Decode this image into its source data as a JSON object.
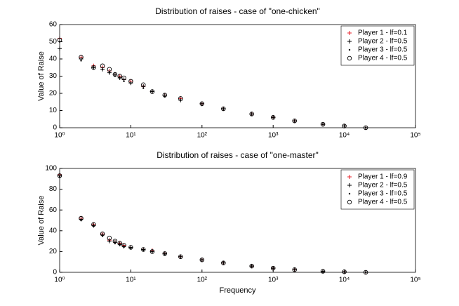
{
  "chart_data": [
    {
      "type": "scatter",
      "title": "Distribution of raises - case of \"one-chicken\"",
      "y_label": "Value of Raise",
      "x_scale": "log",
      "xlim": [
        1,
        100000
      ],
      "xticks": [
        {
          "value": 1,
          "label": "10⁰"
        },
        {
          "value": 10,
          "label": "10¹"
        },
        {
          "value": 100,
          "label": "10²"
        },
        {
          "value": 1000,
          "label": "10³"
        },
        {
          "value": 10000,
          "label": "10⁴"
        },
        {
          "value": 100000,
          "label": "10⁵"
        }
      ],
      "ylim": [
        0,
        60
      ],
      "yticks": [
        0,
        10,
        20,
        30,
        40,
        50,
        60
      ],
      "legend": "upper right",
      "x": [
        1,
        2,
        3,
        4,
        5,
        6,
        7,
        8,
        10,
        15,
        20,
        30,
        50,
        100,
        200,
        500,
        1000,
        2000,
        5000,
        10000,
        20000
      ],
      "series": [
        {
          "name": "Player 1 - lf=0.1",
          "color": "#e8202a",
          "marker": "+",
          "values": [
            52,
            41,
            36,
            35,
            33,
            31,
            30,
            28,
            27,
            24,
            21,
            19,
            17,
            14,
            11,
            8,
            6,
            4,
            2,
            1,
            0
          ]
        },
        {
          "name": "Player 2 - lf=0.5",
          "color": "#000000",
          "marker": "+",
          "values": [
            46,
            40,
            35,
            34,
            32,
            31,
            29,
            28,
            26,
            24,
            21,
            19,
            16,
            14,
            11,
            8,
            6,
            4,
            2,
            1,
            0
          ]
        },
        {
          "name": "Player 3 - lf=0.5",
          "color": "#000000",
          "marker": ".",
          "values": [
            50,
            39,
            35,
            34,
            32,
            30,
            29,
            27,
            26,
            23,
            21,
            18,
            16,
            13,
            11,
            8,
            6,
            4,
            2,
            1,
            0
          ]
        },
        {
          "name": "Player 4 - lf=0.5",
          "color": "#000000",
          "marker": "o",
          "values": [
            51,
            41,
            35,
            36,
            34,
            31,
            30,
            29,
            27,
            25,
            21,
            19,
            17,
            14,
            11,
            8,
            6,
            4,
            2,
            1,
            0
          ]
        }
      ]
    },
    {
      "type": "scatter",
      "title": "Distribution of raises - case of \"one-master\"",
      "y_label": "Value of Raise",
      "x_label": "Frequency",
      "x_scale": "log",
      "xlim": [
        1,
        100000
      ],
      "xticks": [
        {
          "value": 1,
          "label": "10⁰"
        },
        {
          "value": 10,
          "label": "10¹"
        },
        {
          "value": 100,
          "label": "10²"
        },
        {
          "value": 1000,
          "label": "10³"
        },
        {
          "value": 10000,
          "label": "10⁴"
        },
        {
          "value": 100000,
          "label": "10⁵"
        }
      ],
      "ylim": [
        0,
        100
      ],
      "yticks": [
        0,
        20,
        40,
        60,
        80,
        100
      ],
      "legend": "upper right",
      "x": [
        1,
        2,
        3,
        4,
        5,
        6,
        7,
        8,
        10,
        15,
        20,
        30,
        50,
        100,
        200,
        500,
        1000,
        2000,
        5000,
        10000,
        20000
      ],
      "series": [
        {
          "name": "Player 1 - lf=0.9",
          "color": "#e8202a",
          "marker": "+",
          "values": [
            94,
            52,
            46,
            37,
            31,
            29,
            28,
            26,
            24,
            22,
            21,
            18,
            15,
            12,
            9,
            6,
            4,
            2.5,
            1,
            0.5,
            0
          ]
        },
        {
          "name": "Player 2 - lf=0.5",
          "color": "#000000",
          "marker": "+",
          "values": [
            93,
            51,
            45,
            36,
            30,
            29,
            27,
            25,
            24,
            22,
            20,
            18,
            15,
            12,
            9,
            6,
            4,
            2.5,
            1,
            0.5,
            0
          ]
        },
        {
          "name": "Player 3 - lf=0.5",
          "color": "#000000",
          "marker": ".",
          "values": [
            92,
            50,
            45,
            35,
            30,
            28,
            27,
            25,
            23,
            21,
            20,
            17,
            15,
            12,
            9,
            6,
            4,
            2.5,
            1,
            0.5,
            0
          ]
        },
        {
          "name": "Player 4 - lf=0.5",
          "color": "#000000",
          "marker": "o",
          "values": [
            93,
            52,
            46,
            37,
            33,
            30,
            28,
            26,
            24,
            22,
            20,
            18,
            15,
            12,
            9,
            6,
            4,
            2.5,
            1,
            0.5,
            0
          ]
        }
      ]
    }
  ]
}
